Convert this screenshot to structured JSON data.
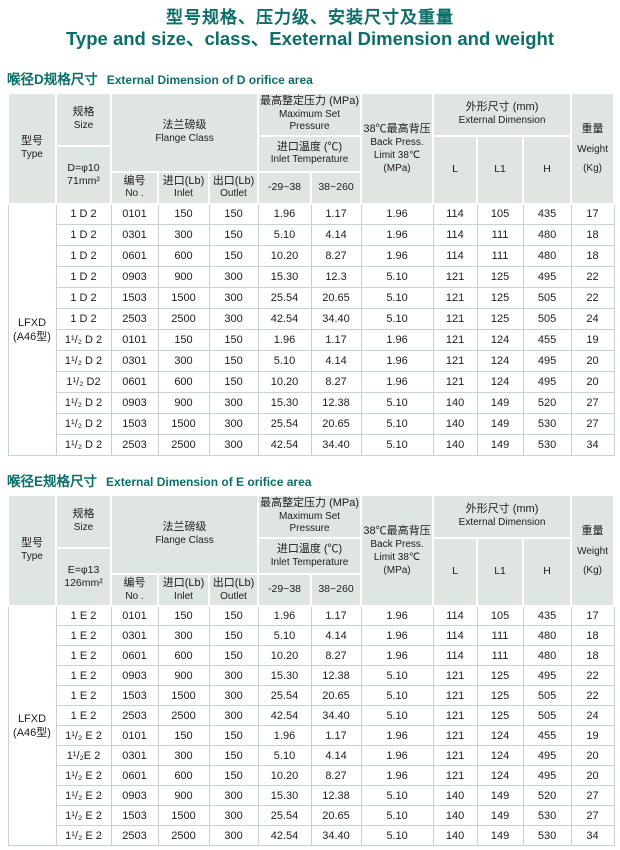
{
  "page": {
    "title_zh": "型号规格、压力级、安装尺寸及重量",
    "title_en": "Type and size、class、Exeternal Dimension and weight"
  },
  "colors": {
    "accent_teal": "#0d6e69",
    "header_bg": "#dfe6e1",
    "grid_line": "#c7d3cc"
  },
  "columns": {
    "type_zh": "型号",
    "type_en": "Type",
    "size_zh": "规格",
    "size_en": "Size",
    "flange_zh": "法兰磅级",
    "flange_en": "Flange Class",
    "no_zh": "编号",
    "no_en": "No .",
    "inlet_zh": "进口(Lb)",
    "inlet_en": "Inlet",
    "outlet_zh": "出口(Lb)",
    "outlet_en": "Outlet",
    "pressure_zh": "最高整定压力 (MPa)",
    "pressure_en": "Maximum Set Pressure",
    "temp_zh": "进口温度 (℃)",
    "temp_en": "Inlet Temperature",
    "temp_range_1": "-29~38",
    "temp_range_2": "38~260",
    "back_zh": "38℃最高背压",
    "back_en1": "Back Press.",
    "back_en2": "Limit 38℃",
    "back_en3": "(MPa)",
    "extdim_zh": "外形尺寸 (mm)",
    "extdim_en": "External Dimension",
    "l": "L",
    "l1": "L1",
    "h": "H",
    "weight_zh": "重量",
    "weight_en": "Weight",
    "weight_unit": "(Kg)"
  },
  "sections": [
    {
      "heading_zh": "喉径D规格尺寸",
      "heading_en": "External Dimension of D orifice area",
      "size_spec_line1": "D=φ10",
      "size_spec_line2": "71mm²",
      "type_line1": "LFXD",
      "type_line2": "(A46型)",
      "rows": [
        [
          "1 D 2",
          "0101",
          "150",
          "150",
          "1.96",
          "1.17",
          "1.96",
          "114",
          "105",
          "435",
          "17"
        ],
        [
          "1 D 2",
          "0301",
          "300",
          "150",
          "5.10",
          "4.14",
          "1.96",
          "114",
          "111",
          "480",
          "18"
        ],
        [
          "1 D 2",
          "0601",
          "600",
          "150",
          "10.20",
          "8.27",
          "1.96",
          "114",
          "111",
          "480",
          "18"
        ],
        [
          "1 D 2",
          "0903",
          "900",
          "300",
          "15.30",
          "12.3",
          "5.10",
          "121",
          "125",
          "495",
          "22"
        ],
        [
          "1 D 2",
          "1503",
          "1500",
          "300",
          "25.54",
          "20.65",
          "5.10",
          "121",
          "125",
          "505",
          "22"
        ],
        [
          "1 D 2",
          "2503",
          "2500",
          "300",
          "42.54",
          "34.40",
          "5.10",
          "121",
          "125",
          "505",
          "24"
        ],
        [
          "1¹/₂ D 2",
          "0101",
          "150",
          "150",
          "1.96",
          "1.17",
          "1.96",
          "121",
          "124",
          "455",
          "19"
        ],
        [
          "1¹/₂ D 2",
          "0301",
          "300",
          "150",
          "5.10",
          "4.14",
          "1.96",
          "121",
          "124",
          "495",
          "20"
        ],
        [
          "1¹/₂ D2",
          "0601",
          "600",
          "150",
          "10.20",
          "8.27",
          "1.96",
          "121",
          "124",
          "495",
          "20"
        ],
        [
          "1¹/₂ D 2",
          "0903",
          "900",
          "300",
          "15.30",
          "12.38",
          "5.10",
          "140",
          "149",
          "520",
          "27"
        ],
        [
          "1¹/₂ D 2",
          "1503",
          "1500",
          "300",
          "25.54",
          "20.65",
          "5.10",
          "140",
          "149",
          "530",
          "27"
        ],
        [
          "1¹/₂ D 2",
          "2503",
          "2500",
          "300",
          "42.54",
          "34.40",
          "5.10",
          "140",
          "149",
          "530",
          "34"
        ]
      ]
    },
    {
      "heading_zh": "喉径E规格尺寸",
      "heading_en": "External Dimension of E orifice area",
      "size_spec_line1": "E=φ13",
      "size_spec_line2": "126mm²",
      "type_line1": "LFXD",
      "type_line2": "(A46型)",
      "rows": [
        [
          "1 E 2",
          "0101",
          "150",
          "150",
          "1.96",
          "1.17",
          "1.96",
          "114",
          "105",
          "435",
          "17"
        ],
        [
          "1 E 2",
          "0301",
          "300",
          "150",
          "5.10",
          "4.14",
          "1.96",
          "114",
          "111",
          "480",
          "18"
        ],
        [
          "1 E 2",
          "0601",
          "600",
          "150",
          "10.20",
          "8.27",
          "1.96",
          "114",
          "111",
          "480",
          "18"
        ],
        [
          "1 E 2",
          "0903",
          "900",
          "300",
          "15.30",
          "12.38",
          "5.10",
          "121",
          "125",
          "495",
          "22"
        ],
        [
          "1 E 2",
          "1503",
          "1500",
          "300",
          "25.54",
          "20.65",
          "5.10",
          "121",
          "125",
          "505",
          "22"
        ],
        [
          "1 E 2",
          "2503",
          "2500",
          "300",
          "42.54",
          "34.40",
          "5.10",
          "121",
          "125",
          "505",
          "24"
        ],
        [
          "1¹/₂ E 2",
          "0101",
          "150",
          "150",
          "1.96",
          "1.17",
          "1.96",
          "121",
          "124",
          "455",
          "19"
        ],
        [
          "1¹/₂E 2",
          "0301",
          "300",
          "150",
          "5.10",
          "4.14",
          "1.96",
          "121",
          "124",
          "495",
          "20"
        ],
        [
          "1¹/₂ E 2",
          "0601",
          "600",
          "150",
          "10.20",
          "8.27",
          "1.96",
          "121",
          "124",
          "495",
          "20"
        ],
        [
          "1¹/₂ E 2",
          "0903",
          "900",
          "300",
          "15.30",
          "12.38",
          "5.10",
          "140",
          "149",
          "520",
          "27"
        ],
        [
          "1¹/₂ E 2",
          "1503",
          "1500",
          "300",
          "25.54",
          "20.65",
          "5.10",
          "140",
          "149",
          "530",
          "27"
        ],
        [
          "1¹/₂ E 2",
          "2503",
          "2500",
          "300",
          "42.54",
          "34.40",
          "5.10",
          "140",
          "149",
          "530",
          "34"
        ]
      ]
    }
  ]
}
